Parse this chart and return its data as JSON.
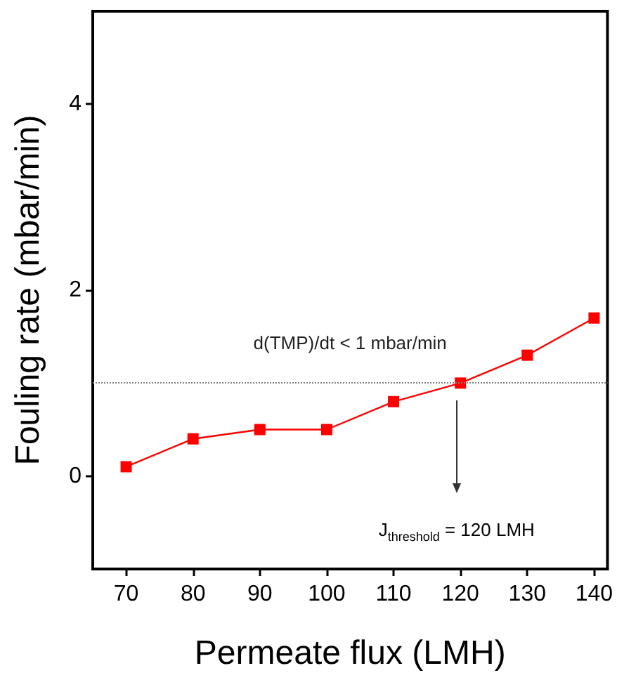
{
  "chart_data": {
    "type": "line",
    "xlabel": "Permeate flux (LMH)",
    "ylabel": "Fouling rate (mbar/min)",
    "x": [
      70,
      80,
      90,
      100,
      110,
      120,
      130,
      140
    ],
    "series": [
      {
        "color": "#ff0000",
        "values": [
          0.1,
          0.4,
          0.5,
          0.5,
          0.8,
          1.0,
          1.3,
          1.7
        ]
      }
    ],
    "xlim": [
      65,
      142
    ],
    "xticks": [
      70,
      80,
      90,
      100,
      110,
      120,
      130,
      140
    ],
    "ylim": [
      -1,
      5
    ],
    "yticks": [
      0,
      2,
      4
    ],
    "marker": "square",
    "line_style": "solid",
    "ref_lines": [
      {
        "axis": "y",
        "value": 1,
        "label": "d(TMP)/dt < 1 mbar/min",
        "color": "#808080",
        "line_style": "dotted"
      }
    ],
    "annotations": [
      "J$_{threshold}$ = 120 LMH"
    ]
  }
}
